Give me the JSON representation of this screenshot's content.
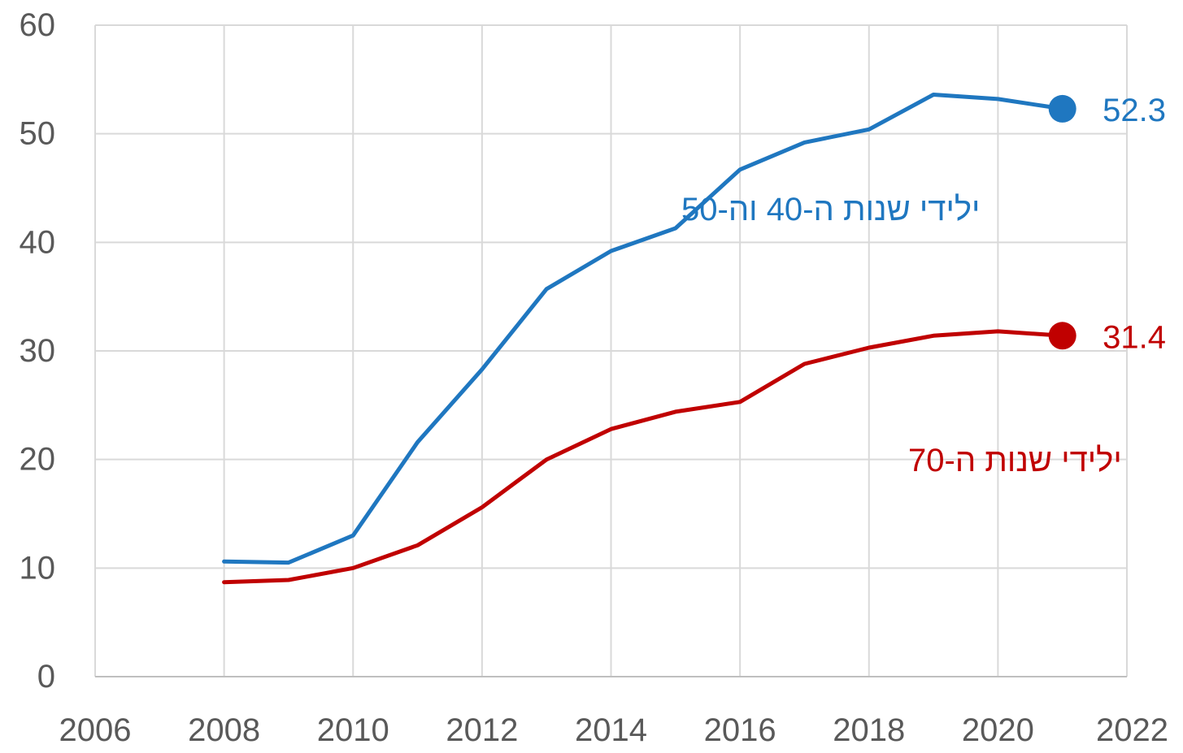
{
  "chart_data": {
    "type": "line",
    "x_ticks": [
      2006,
      2008,
      2010,
      2012,
      2014,
      2016,
      2018,
      2020,
      2022
    ],
    "y_ticks": [
      0,
      10,
      20,
      30,
      40,
      50,
      60
    ],
    "xlim": [
      2006,
      2022
    ],
    "ylim": [
      0,
      60
    ],
    "grid": true,
    "series": [
      {
        "name": "ילידי שנות ה-40 וה-50",
        "color": "#1f77c0",
        "x": [
          2008,
          2009,
          2010,
          2011,
          2012,
          2013,
          2014,
          2015,
          2016,
          2017,
          2018,
          2019,
          2020,
          2021
        ],
        "y": [
          10.6,
          10.5,
          13.0,
          21.6,
          28.3,
          35.7,
          39.2,
          41.3,
          46.7,
          49.2,
          50.4,
          53.6,
          53.2,
          52.3
        ],
        "end_label": "52.3"
      },
      {
        "name": "ילידי שנות ה-70",
        "color": "#c00000",
        "x": [
          2008,
          2009,
          2010,
          2011,
          2012,
          2013,
          2014,
          2015,
          2016,
          2017,
          2018,
          2019,
          2020,
          2021
        ],
        "y": [
          8.7,
          8.9,
          10.0,
          12.1,
          15.6,
          20.0,
          22.8,
          24.4,
          25.3,
          28.8,
          30.3,
          31.4,
          31.8,
          31.4
        ],
        "end_label": "31.4"
      }
    ]
  }
}
